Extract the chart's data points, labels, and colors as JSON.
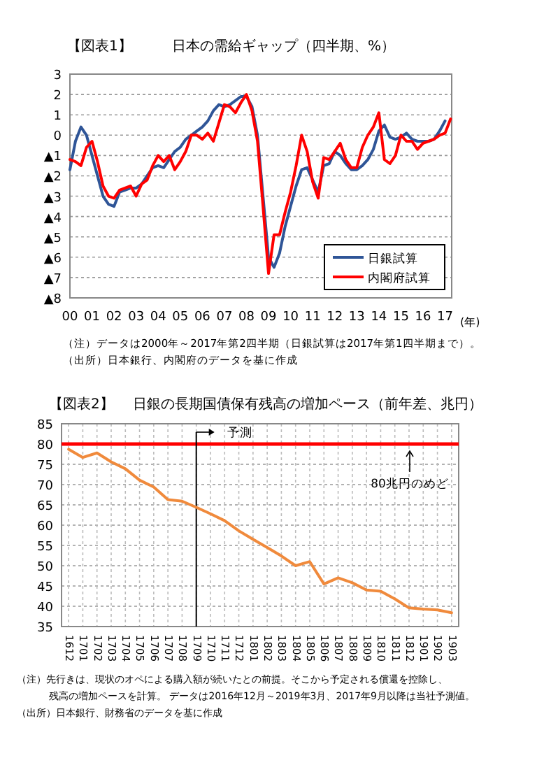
{
  "chart_data": [
    {
      "type": "line",
      "title": "日本の需給ギャップ（四半期、%）",
      "x": [
        2000,
        2000.25,
        2000.5,
        2000.75,
        2001,
        2001.25,
        2001.5,
        2001.75,
        2002,
        2002.25,
        2002.5,
        2002.75,
        2003,
        2003.25,
        2003.5,
        2003.75,
        2004,
        2004.25,
        2004.5,
        2004.75,
        2005,
        2005.25,
        2005.5,
        2005.75,
        2006,
        2006.25,
        2006.5,
        2006.75,
        2007,
        2007.25,
        2007.5,
        2007.75,
        2008,
        2008.25,
        2008.5,
        2008.75,
        2009,
        2009.25,
        2009.5,
        2009.75,
        2010,
        2010.25,
        2010.5,
        2010.75,
        2011,
        2011.25,
        2011.5,
        2011.75,
        2012,
        2012.25,
        2012.5,
        2012.75,
        2013,
        2013.25,
        2013.5,
        2013.75,
        2014,
        2014.25,
        2014.5,
        2014.75,
        2015,
        2015.25,
        2015.5,
        2015.75,
        2016,
        2016.25,
        2016.5,
        2016.75,
        2017,
        2017.25
      ],
      "series": [
        {
          "name": "日銀試算",
          "color": "#2f5597",
          "values": [
            -1.7,
            -0.3,
            0.4,
            0.0,
            -1.0,
            -2.0,
            -3.0,
            -3.4,
            -3.5,
            -2.8,
            -2.7,
            -2.6,
            -2.6,
            -2.4,
            -2.0,
            -1.6,
            -1.5,
            -1.6,
            -1.2,
            -0.8,
            -0.6,
            -0.2,
            0.0,
            0.2,
            0.4,
            0.7,
            1.2,
            1.5,
            1.4,
            1.5,
            1.7,
            1.9,
            1.9,
            1.4,
            0.0,
            -3.0,
            -6.0,
            -6.5,
            -5.8,
            -4.5,
            -3.5,
            -2.5,
            -1.7,
            -1.6,
            -2.2,
            -2.8,
            -1.5,
            -1.4,
            -0.8,
            -1.0,
            -1.4,
            -1.7,
            -1.7,
            -1.5,
            -1.2,
            -0.7,
            0.2,
            0.5,
            -0.1,
            -0.2,
            -0.1,
            0.1,
            -0.2,
            -0.3,
            -0.3,
            -0.3,
            -0.2,
            0.2,
            0.7,
            null
          ]
        },
        {
          "name": "内閣府試算",
          "color": "#ff0000",
          "values": [
            -1.2,
            -1.3,
            -1.5,
            -0.6,
            -0.3,
            -1.3,
            -2.5,
            -3.0,
            -3.1,
            -2.7,
            -2.6,
            -2.5,
            -3.0,
            -2.4,
            -2.2,
            -1.5,
            -1.0,
            -1.3,
            -1.0,
            -1.7,
            -1.3,
            -0.8,
            0.0,
            0.0,
            -0.2,
            0.1,
            -0.3,
            0.6,
            1.5,
            1.4,
            1.1,
            1.6,
            2.0,
            1.2,
            -0.3,
            -3.5,
            -6.8,
            -4.9,
            -4.9,
            -3.8,
            -2.8,
            -1.5,
            0.0,
            -0.8,
            -2.3,
            -3.1,
            -1.1,
            -1.2,
            -0.8,
            -0.4,
            -1.2,
            -1.6,
            -1.6,
            -0.6,
            0.0,
            0.4,
            1.1,
            -1.2,
            -1.4,
            -1.0,
            0.0,
            -0.3,
            -0.3,
            -0.7,
            -0.4,
            -0.3,
            -0.2,
            0.0,
            0.1,
            0.8
          ]
        }
      ],
      "xlim": [
        2000,
        2017.3
      ],
      "xticks": [
        {
          "value": 2000,
          "label": "00"
        },
        {
          "value": 2001,
          "label": "01"
        },
        {
          "value": 2002,
          "label": "02"
        },
        {
          "value": 2003,
          "label": "03"
        },
        {
          "value": 2004,
          "label": "04"
        },
        {
          "value": 2005,
          "label": "05"
        },
        {
          "value": 2006,
          "label": "06"
        },
        {
          "value": 2007,
          "label": "07"
        },
        {
          "value": 2008,
          "label": "08"
        },
        {
          "value": 2009,
          "label": "09"
        },
        {
          "value": 2010,
          "label": "10"
        },
        {
          "value": 2011,
          "label": "11"
        },
        {
          "value": 2012,
          "label": "12"
        },
        {
          "value": 2013,
          "label": "13"
        },
        {
          "value": 2014,
          "label": "14"
        },
        {
          "value": 2015,
          "label": "15"
        },
        {
          "value": 2016,
          "label": "16"
        },
        {
          "value": 2017,
          "label": "17"
        }
      ],
      "ylim": [
        -8,
        3
      ],
      "yticks": [
        3,
        2,
        1,
        0,
        {
          "value": -1,
          "label": "▲1"
        },
        {
          "value": -2,
          "label": "▲2"
        },
        {
          "value": -3,
          "label": "▲3"
        },
        {
          "value": -4,
          "label": "▲4"
        },
        {
          "value": -5,
          "label": "▲5"
        },
        {
          "value": -6,
          "label": "▲6"
        },
        {
          "value": -7,
          "label": "▲7"
        },
        {
          "value": -8,
          "label": "▲8"
        }
      ],
      "grid": "y",
      "legend": "bottom right",
      "annotations": [
        "【図表1】",
        "(年)",
        "（注）データは2000年～2017年第2四半期（日銀試算は2017年第1四半期まで）。",
        "（出所）日本銀行、内閣府のデータを基に作成"
      ]
    },
    {
      "type": "line",
      "title": "日銀の長期国債保有残高の増加ペース（前年差、兆円）",
      "categories": [
        "1612",
        "1701",
        "1702",
        "1703",
        "1704",
        "1705",
        "1706",
        "1707",
        "1708",
        "1709",
        "1710",
        "1711",
        "1712",
        "1801",
        "1802",
        "1803",
        "1804",
        "1805",
        "1806",
        "1807",
        "1808",
        "1809",
        "1810",
        "1811",
        "1812",
        "1901",
        "1902",
        "1903"
      ],
      "series": [
        {
          "color": "#f08a3c",
          "values": [
            78.7,
            76.7,
            77.8,
            75.6,
            73.9,
            71.1,
            69.4,
            66.3,
            65.9,
            64.4,
            62.8,
            61.1,
            58.6,
            56.5,
            54.5,
            52.4,
            50.0,
            51.0,
            45.5,
            47.0,
            45.8,
            44.0,
            43.7,
            41.8,
            39.6,
            39.3,
            39.1,
            38.4
          ]
        }
      ],
      "ylim": [
        35,
        85
      ],
      "yticks": [
        35,
        40,
        45,
        50,
        55,
        60,
        65,
        70,
        75,
        80,
        85
      ],
      "grid": true,
      "ref_lines": [
        {
          "axis": "y",
          "value": 80,
          "label": "80兆円のめど",
          "color": "#ff0000"
        },
        {
          "axis": "x",
          "value": "1709",
          "label": "予測",
          "color": "#000000"
        }
      ],
      "annotations": [
        "【図表2】",
        "（注）先行きは、現状のオペによる購入額が続いたとの前提。そこから予定される償還を控除し、",
        "残高の増加ペースを計算。 データは2016年12月～2019年3月、2017年9月以降は当社予測値。",
        "（出所）日本銀行、財務省のデータを基に作成"
      ]
    }
  ]
}
